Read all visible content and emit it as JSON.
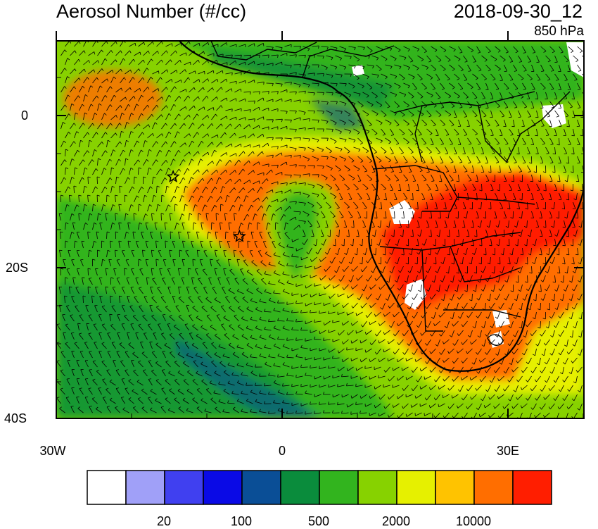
{
  "header": {
    "title": "Aerosol Number (#/cc)",
    "datetime": "2018-09-30_12",
    "level": "850 hPa"
  },
  "map": {
    "lat_labels": [
      "0",
      "20S",
      "40S"
    ],
    "lon_labels": [
      "30W",
      "0",
      "30E"
    ],
    "markers": [
      {
        "name": "star-marker",
        "lon": -14.5,
        "lat": -8.0
      },
      {
        "name": "star-marker",
        "lon": -5.7,
        "lat": -15.9
      }
    ]
  },
  "colorbar": {
    "colors": [
      "#ffffff",
      "#a0a0f8",
      "#4040f0",
      "#0a0ae6",
      "#0a4e96",
      "#0a8c3c",
      "#32b41e",
      "#87d200",
      "#e6f000",
      "#ffc300",
      "#ff6e00",
      "#ff1e00"
    ],
    "labels": [
      "20",
      "100",
      "500",
      "2000",
      "10000"
    ]
  }
}
